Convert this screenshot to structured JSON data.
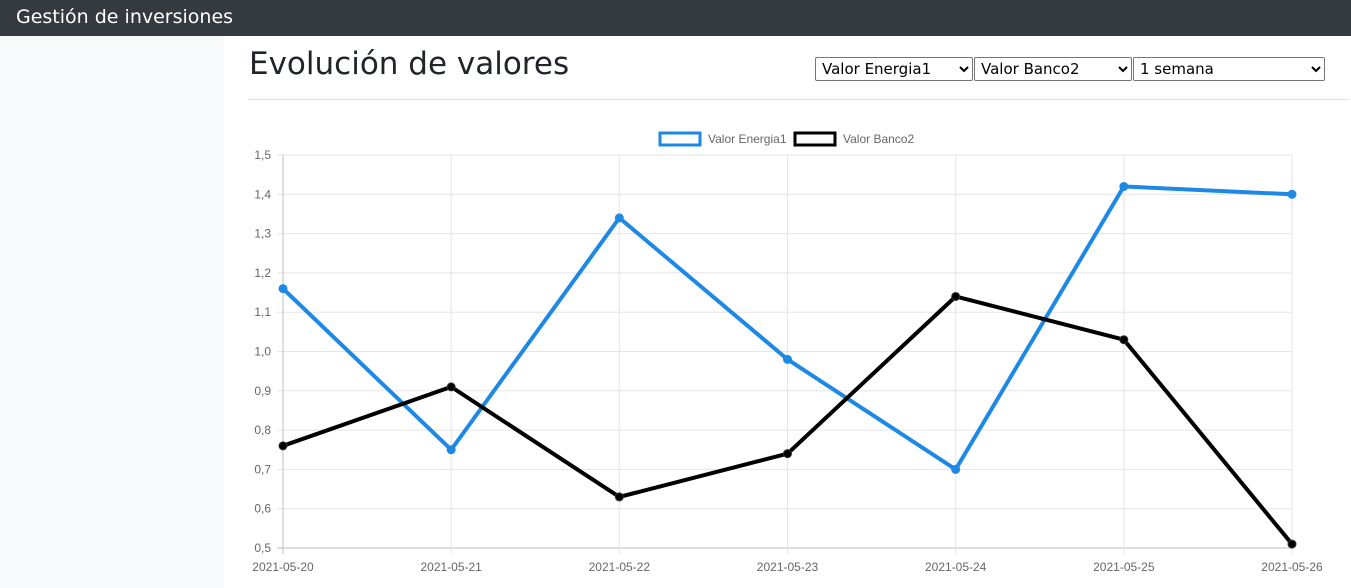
{
  "app": {
    "title": "Gestión de inversiones"
  },
  "page": {
    "title": "Evolución de valores"
  },
  "controls": {
    "asset1": {
      "selected": "Valor Energia1",
      "options": [
        "Valor Energia1"
      ]
    },
    "asset2": {
      "selected": "Valor Banco2",
      "options": [
        "Valor Banco2"
      ]
    },
    "period": {
      "selected": "1 semana",
      "options": [
        "1 semana"
      ]
    }
  },
  "colors": {
    "series1": "#1e88e5",
    "series2": "#000000",
    "grid": "#e5e5e5",
    "tick": "#666666"
  },
  "chart_data": {
    "type": "line",
    "x": [
      "2021-05-20",
      "2021-05-21",
      "2021-05-22",
      "2021-05-23",
      "2021-05-24",
      "2021-05-25",
      "2021-05-26"
    ],
    "series": [
      {
        "name": "Valor Energia1",
        "values": [
          1.16,
          0.75,
          1.34,
          0.98,
          0.7,
          1.42,
          1.4
        ]
      },
      {
        "name": "Valor Banco2",
        "values": [
          0.76,
          0.91,
          0.63,
          0.74,
          1.14,
          1.03,
          0.51
        ]
      }
    ],
    "ylim": [
      0.5,
      1.5
    ],
    "yticks": [
      "0,5",
      "0,6",
      "0,7",
      "0,8",
      "0,9",
      "1,0",
      "1,1",
      "1,2",
      "1,3",
      "1,4",
      "1,5"
    ],
    "grid": true,
    "legend": "top-center"
  }
}
